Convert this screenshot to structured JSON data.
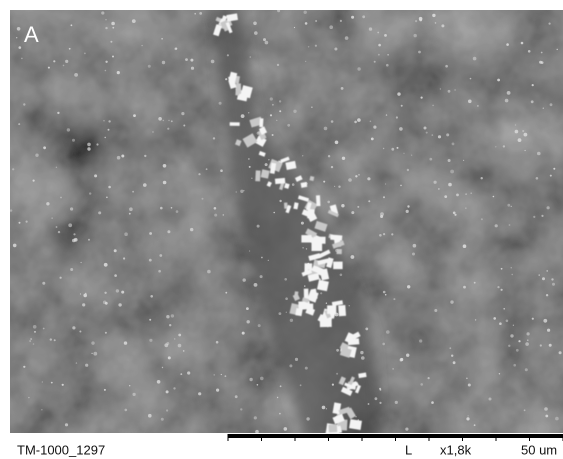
{
  "panel_label": "A",
  "footer": {
    "image_id": "TM-1000_1297",
    "mode": "L",
    "magnification": "x1,8k",
    "scale": "50 um"
  }
}
